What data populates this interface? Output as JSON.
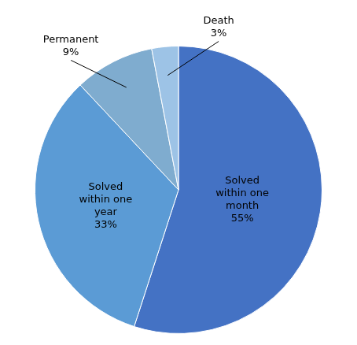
{
  "chart_data": {
    "type": "pie",
    "categories": [
      "Solved\nwithin one\nmonth",
      "Solved\nwithin one\nyear",
      "Permanent",
      "Death"
    ],
    "values": [
      55,
      33,
      9,
      3
    ],
    "value_labels": [
      "55%",
      "33%",
      "9%",
      "3%"
    ],
    "colors": [
      "#4472C4",
      "#5B9BD5",
      "#7FACCF",
      "#9DC3E6"
    ],
    "data_labels": true
  }
}
